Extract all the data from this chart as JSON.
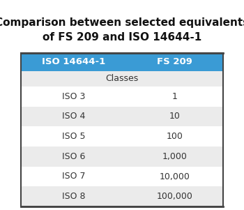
{
  "title_line1": "Comparison between selected equivalents",
  "title_line2": "of FS 209 and ISO 14644-1",
  "title_fontsize": 11,
  "title_fontweight": "bold",
  "header_col1": "ISO 14644-1",
  "header_col2": "FS 209",
  "header_bg_color": "#3A9BD5",
  "header_text_color": "#FFFFFF",
  "subheader_text": "Classes",
  "subheader_bg_color": "#EBEBEB",
  "rows": [
    {
      "col1": "ISO 3",
      "col2": "1",
      "bg": "#FFFFFF"
    },
    {
      "col1": "ISO 4",
      "col2": "10",
      "bg": "#EBEBEB"
    },
    {
      "col1": "ISO 5",
      "col2": "100",
      "bg": "#FFFFFF"
    },
    {
      "col1": "ISO 6",
      "col2": "1,000",
      "bg": "#EBEBEB"
    },
    {
      "col1": "ISO 7",
      "col2": "10,000",
      "bg": "#FFFFFF"
    },
    {
      "col1": "ISO 8",
      "col2": "100,000",
      "bg": "#EBEBEB"
    }
  ],
  "table_border_color": "#444444",
  "row_text_color": "#333333",
  "font_size_header": 9.5,
  "font_size_table": 9,
  "bg_color": "#FFFFFF",
  "fig_width": 3.5,
  "fig_height": 3.01,
  "dpi": 100
}
